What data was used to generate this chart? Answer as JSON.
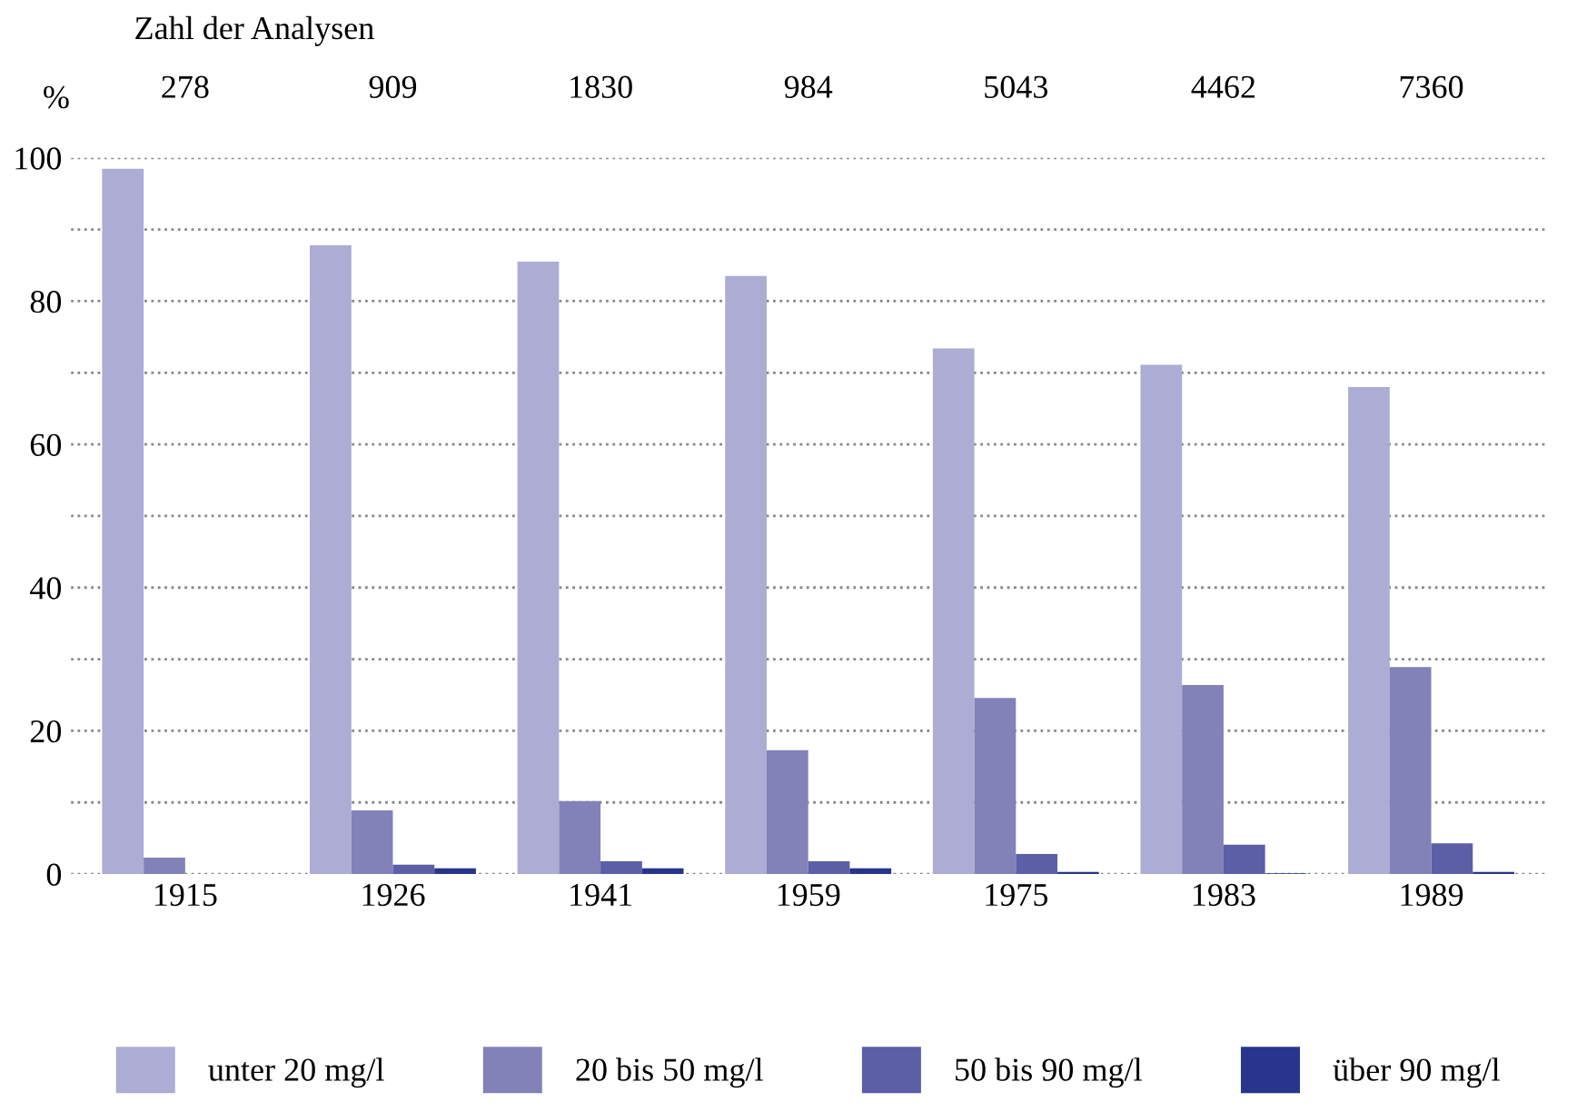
{
  "chart_data": {
    "type": "bar",
    "ylabel": "%",
    "categories": [
      "1915",
      "1926",
      "1941",
      "1959",
      "1975",
      "1983",
      "1989"
    ],
    "series": [
      {
        "name": "unter 20 mg/l",
        "color": "#acacd4",
        "values": [
          98.5,
          87.8,
          85.5,
          83.5,
          73.4,
          71.1,
          68.0
        ]
      },
      {
        "name": "20 bis 50 mg/l",
        "color": "#8282b8",
        "values": [
          2.3,
          8.9,
          10.2,
          17.3,
          24.6,
          26.4,
          28.9
        ]
      },
      {
        "name": "50 bis 90 mg/l",
        "color": "#5c5ea6",
        "values": [
          0,
          1.3,
          1.8,
          1.8,
          2.8,
          4.1,
          4.3
        ]
      },
      {
        "name": "über 90 mg/l",
        "color": "#27358c",
        "values": [
          0,
          0.8,
          0.8,
          0.8,
          0.3,
          0.1,
          0.3
        ]
      }
    ],
    "ylim": [
      0,
      100
    ],
    "yticks": [
      0,
      {
        "value": 10,
        "label": null
      },
      20,
      {
        "value": 30,
        "label": null
      },
      40,
      {
        "value": 50,
        "label": null
      },
      60,
      {
        "value": 70,
        "label": null
      },
      80,
      {
        "value": 90,
        "label": null
      },
      100
    ],
    "grid": "y",
    "legend": "bottom",
    "annotations": [
      "Zahl der Analysen",
      "278",
      "909",
      "1830",
      "984",
      "5043",
      "4462",
      "7360"
    ]
  }
}
